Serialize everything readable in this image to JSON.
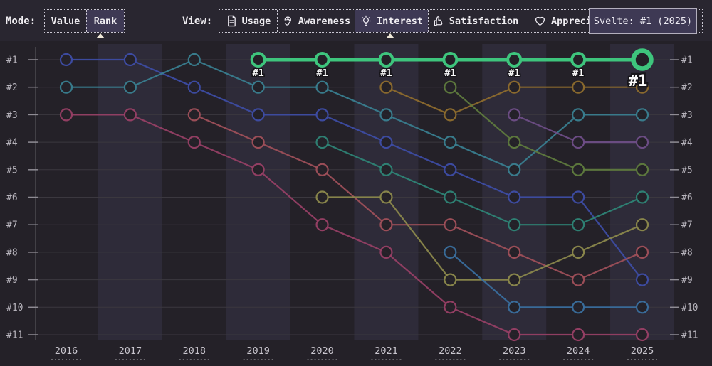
{
  "toolbar": {
    "mode_label": "Mode:",
    "modes": [
      {
        "label": "Value",
        "selected": false
      },
      {
        "label": "Rank",
        "selected": true
      }
    ],
    "view_label": "View:",
    "views": [
      {
        "label": "Usage",
        "icon": "document-icon",
        "selected": false
      },
      {
        "label": "Awareness",
        "icon": "ear-icon",
        "selected": false
      },
      {
        "label": "Interest",
        "icon": "lightbulb-icon",
        "selected": true
      },
      {
        "label": "Satisfaction",
        "icon": "thumbs-up-icon",
        "selected": false
      },
      {
        "label": "Appreciation",
        "icon": "heart-icon",
        "selected": false
      }
    ]
  },
  "tooltip": {
    "text": "Svelte: #1 (2025)"
  },
  "chart_data": {
    "type": "line",
    "variant": "bump-rank-chart",
    "title": "",
    "x_ticks": [
      2016,
      2017,
      2018,
      2019,
      2020,
      2021,
      2022,
      2023,
      2024,
      2025
    ],
    "y_ticks": [
      "#1",
      "#2",
      "#3",
      "#4",
      "#5",
      "#6",
      "#7",
      "#8",
      "#9",
      "#10",
      "#11"
    ],
    "y_axis_sides": [
      "left",
      "right"
    ],
    "y_inverted": true,
    "grid": true,
    "legend": "none",
    "banded_years": [
      2017,
      2019,
      2021,
      2023,
      2025
    ],
    "highlighted_series": "Svelte",
    "series": [
      {
        "name": "unlabeled-indigo",
        "color": "#3e4da6",
        "points": [
          [
            2016,
            1
          ],
          [
            2017,
            1
          ],
          [
            2018,
            2
          ],
          [
            2019,
            3
          ],
          [
            2020,
            3
          ],
          [
            2021,
            4
          ],
          [
            2022,
            5
          ],
          [
            2023,
            6
          ],
          [
            2024,
            6
          ],
          [
            2025,
            9
          ]
        ]
      },
      {
        "name": "unlabeled-teal",
        "color": "#3a8091",
        "points": [
          [
            2016,
            2
          ],
          [
            2017,
            2
          ],
          [
            2018,
            1
          ],
          [
            2019,
            2
          ],
          [
            2020,
            2
          ],
          [
            2021,
            3
          ],
          [
            2022,
            4
          ],
          [
            2023,
            5
          ],
          [
            2024,
            3
          ],
          [
            2025,
            3
          ]
        ]
      },
      {
        "name": "unlabeled-rose",
        "color": "#984066",
        "points": [
          [
            2016,
            3
          ],
          [
            2017,
            3
          ],
          [
            2018,
            4
          ],
          [
            2019,
            5
          ],
          [
            2020,
            7
          ],
          [
            2021,
            8
          ],
          [
            2022,
            10
          ],
          [
            2023,
            11
          ],
          [
            2024,
            11
          ],
          [
            2025,
            11
          ]
        ]
      },
      {
        "name": "unlabeled-brickred",
        "color": "#a1505a",
        "points": [
          [
            2018,
            3
          ],
          [
            2019,
            4
          ],
          [
            2020,
            5
          ],
          [
            2021,
            7
          ],
          [
            2022,
            7
          ],
          [
            2023,
            8
          ],
          [
            2024,
            9
          ],
          [
            2025,
            8
          ]
        ]
      },
      {
        "name": "unlabeled-seagreen",
        "color": "#2f8577",
        "points": [
          [
            2020,
            4
          ],
          [
            2021,
            5
          ],
          [
            2022,
            6
          ],
          [
            2023,
            7
          ],
          [
            2024,
            7
          ],
          [
            2025,
            6
          ]
        ]
      },
      {
        "name": "unlabeled-olive",
        "color": "#8d8a4c",
        "points": [
          [
            2020,
            6
          ],
          [
            2021,
            6
          ],
          [
            2022,
            9
          ],
          [
            2023,
            9
          ],
          [
            2024,
            8
          ],
          [
            2025,
            7
          ]
        ]
      },
      {
        "name": "unlabeled-amber",
        "color": "#8f6d2e",
        "points": [
          [
            2021,
            2
          ],
          [
            2022,
            3
          ],
          [
            2023,
            2
          ],
          [
            2024,
            2
          ],
          [
            2025,
            2
          ]
        ]
      },
      {
        "name": "unlabeled-olivegreen",
        "color": "#5f7c3e",
        "points": [
          [
            2022,
            2
          ],
          [
            2023,
            4
          ],
          [
            2024,
            5
          ],
          [
            2025,
            5
          ]
        ]
      },
      {
        "name": "unlabeled-steelblue",
        "color": "#3a6f9f",
        "points": [
          [
            2022,
            8
          ],
          [
            2023,
            10
          ],
          [
            2024,
            10
          ],
          [
            2025,
            10
          ]
        ]
      },
      {
        "name": "unlabeled-purple",
        "color": "#6f4e88",
        "points": [
          [
            2023,
            3
          ],
          [
            2024,
            4
          ],
          [
            2025,
            4
          ]
        ]
      },
      {
        "name": "Svelte",
        "color": "#3ec57d",
        "highlight": true,
        "point_label": "#1",
        "final_label": "#1",
        "points": [
          [
            2019,
            1
          ],
          [
            2020,
            1
          ],
          [
            2021,
            1
          ],
          [
            2022,
            1
          ],
          [
            2023,
            1
          ],
          [
            2024,
            1
          ],
          [
            2025,
            1
          ]
        ]
      }
    ],
    "colors": {
      "page_bg": "#242128",
      "toolbar_bg": "#292630",
      "band": "#2e2b39",
      "gridline": "#3b383f",
      "axis_text": "#b6b3bb",
      "year_text": "#c9c6ce",
      "highlight": "#3ec57d",
      "selected_bg": "#3e3954"
    }
  }
}
